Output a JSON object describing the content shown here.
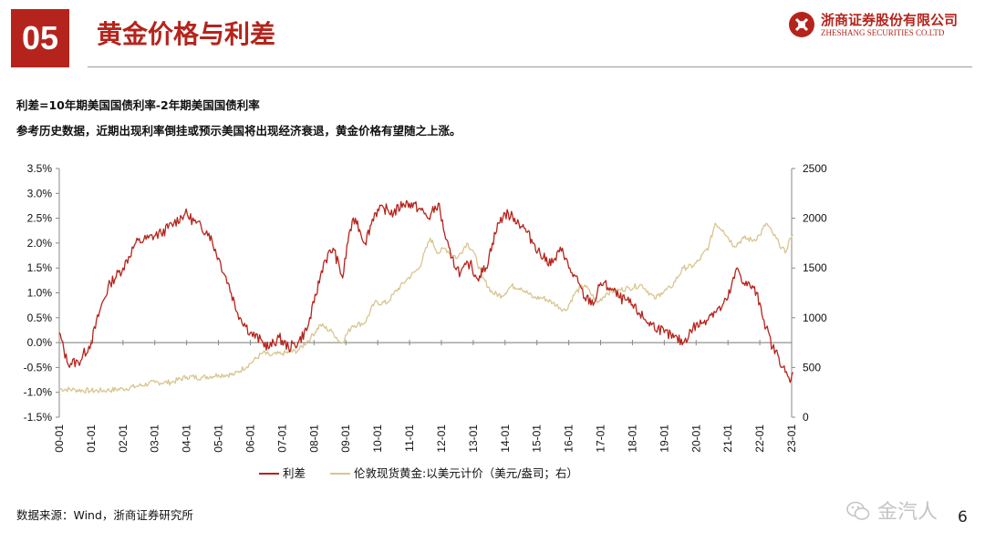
{
  "header": {
    "section_number": "05",
    "title": "黄金价格与利差",
    "logo_cn": "浙商证券股份有限公司",
    "logo_en": "ZHESHANG SECURITIES CO.LTD"
  },
  "subtitle1": "利差=10年期美国国债利率-2年期美国国债利率",
  "subtitle2": "参考历史数据，近期出现利率倒挂或预示美国将出现经济衰退，黄金价格有望随之上涨。",
  "source": "数据来源：Wind，浙商证券研究所",
  "watermark": "金汽人",
  "page_number": "6",
  "colors": {
    "spread": "#b5241c",
    "gold": "#d8c58f",
    "brand": "#b5241c"
  },
  "chart_data": {
    "type": "line",
    "title": "",
    "x_tick_labels": [
      "00-01",
      "01-01",
      "02-01",
      "03-01",
      "04-01",
      "05-01",
      "06-01",
      "07-01",
      "08-01",
      "09-01",
      "10-01",
      "11-01",
      "12-01",
      "13-01",
      "14-01",
      "15-01",
      "16-01",
      "17-01",
      "18-01",
      "19-01",
      "20-01",
      "21-01",
      "22-01",
      "23-01"
    ],
    "left_axis": {
      "ylim": [
        -0.015,
        0.035
      ],
      "tick_labels": [
        "3.5%",
        "3.0%",
        "2.5%",
        "2.0%",
        "1.5%",
        "1.0%",
        "0.5%",
        "0.0%",
        "-0.5%",
        "-1.0%",
        "-1.5%"
      ]
    },
    "right_axis": {
      "ylim": [
        0,
        2500
      ],
      "tick_labels": [
        "2500",
        "2000",
        "1500",
        "1000",
        "500",
        "0"
      ]
    },
    "legend": {
      "position": "bottom-center",
      "entries": [
        "利差",
        "伦敦现货黄金:以美元计价（美元/盎司；右）"
      ]
    },
    "series": [
      {
        "name": "利差",
        "axis": "left",
        "points": [
          [
            2000.0,
            0.002
          ],
          [
            2000.25,
            -0.004
          ],
          [
            2000.6,
            -0.004
          ],
          [
            2001.0,
            0.0
          ],
          [
            2001.3,
            0.007
          ],
          [
            2001.6,
            0.012
          ],
          [
            2002.0,
            0.015
          ],
          [
            2002.4,
            0.02
          ],
          [
            2002.8,
            0.021
          ],
          [
            2003.2,
            0.022
          ],
          [
            2003.6,
            0.024
          ],
          [
            2003.95,
            0.026
          ],
          [
            2004.3,
            0.024
          ],
          [
            2004.7,
            0.022
          ],
          [
            2005.0,
            0.017
          ],
          [
            2005.3,
            0.012
          ],
          [
            2005.6,
            0.006
          ],
          [
            2006.0,
            0.002
          ],
          [
            2006.4,
            0.0
          ],
          [
            2006.6,
            -0.001
          ],
          [
            2006.9,
            0.001
          ],
          [
            2007.2,
            -0.001
          ],
          [
            2007.5,
            0.0
          ],
          [
            2007.8,
            0.003
          ],
          [
            2008.0,
            0.008
          ],
          [
            2008.3,
            0.016
          ],
          [
            2008.6,
            0.019
          ],
          [
            2008.9,
            0.013
          ],
          [
            2009.1,
            0.022
          ],
          [
            2009.3,
            0.025
          ],
          [
            2009.6,
            0.02
          ],
          [
            2009.9,
            0.026
          ],
          [
            2010.2,
            0.027
          ],
          [
            2010.5,
            0.026
          ],
          [
            2010.8,
            0.028
          ],
          [
            2011.0,
            0.028
          ],
          [
            2011.3,
            0.027
          ],
          [
            2011.6,
            0.025
          ],
          [
            2011.9,
            0.028
          ],
          [
            2012.1,
            0.022
          ],
          [
            2012.3,
            0.017
          ],
          [
            2012.6,
            0.014
          ],
          [
            2012.9,
            0.016
          ],
          [
            2013.1,
            0.013
          ],
          [
            2013.4,
            0.015
          ],
          [
            2013.6,
            0.02
          ],
          [
            2013.8,
            0.024
          ],
          [
            2014.0,
            0.026
          ],
          [
            2014.3,
            0.025
          ],
          [
            2014.6,
            0.023
          ],
          [
            2014.9,
            0.02
          ],
          [
            2015.2,
            0.017
          ],
          [
            2015.5,
            0.016
          ],
          [
            2015.8,
            0.019
          ],
          [
            2016.0,
            0.015
          ],
          [
            2016.3,
            0.012
          ],
          [
            2016.5,
            0.009
          ],
          [
            2016.8,
            0.008
          ],
          [
            2017.0,
            0.012
          ],
          [
            2017.3,
            0.011
          ],
          [
            2017.6,
            0.009
          ],
          [
            2017.9,
            0.008
          ],
          [
            2018.2,
            0.006
          ],
          [
            2018.5,
            0.004
          ],
          [
            2018.8,
            0.003
          ],
          [
            2019.0,
            0.002
          ],
          [
            2019.3,
            0.001
          ],
          [
            2019.6,
            0.0
          ],
          [
            2019.9,
            0.003
          ],
          [
            2020.2,
            0.004
          ],
          [
            2020.5,
            0.006
          ],
          [
            2020.8,
            0.007
          ],
          [
            2021.0,
            0.009
          ],
          [
            2021.3,
            0.015
          ],
          [
            2021.5,
            0.012
          ],
          [
            2021.8,
            0.011
          ],
          [
            2022.0,
            0.008
          ],
          [
            2022.2,
            0.003
          ],
          [
            2022.4,
            -0.001
          ],
          [
            2022.6,
            -0.003
          ],
          [
            2022.8,
            -0.006
          ],
          [
            2022.95,
            -0.008
          ],
          [
            2023.05,
            -0.006
          ]
        ]
      },
      {
        "name": "伦敦现货黄金:以美元计价（美元/盎司；右）",
        "axis": "right",
        "points": [
          [
            2000.0,
            285
          ],
          [
            2000.5,
            275
          ],
          [
            2001.0,
            265
          ],
          [
            2001.5,
            270
          ],
          [
            2002.0,
            285
          ],
          [
            2002.5,
            315
          ],
          [
            2003.0,
            350
          ],
          [
            2003.5,
            350
          ],
          [
            2004.0,
            405
          ],
          [
            2004.5,
            400
          ],
          [
            2005.0,
            425
          ],
          [
            2005.5,
            430
          ],
          [
            2006.0,
            540
          ],
          [
            2006.4,
            650
          ],
          [
            2006.6,
            620
          ],
          [
            2007.0,
            640
          ],
          [
            2007.5,
            670
          ],
          [
            2007.9,
            800
          ],
          [
            2008.2,
            930
          ],
          [
            2008.6,
            850
          ],
          [
            2008.85,
            740
          ],
          [
            2009.2,
            920
          ],
          [
            2009.6,
            950
          ],
          [
            2009.9,
            1150
          ],
          [
            2010.3,
            1150
          ],
          [
            2010.5,
            1240
          ],
          [
            2010.9,
            1380
          ],
          [
            2011.3,
            1500
          ],
          [
            2011.65,
            1800
          ],
          [
            2011.9,
            1650
          ],
          [
            2012.1,
            1700
          ],
          [
            2012.5,
            1600
          ],
          [
            2012.8,
            1750
          ],
          [
            2013.0,
            1670
          ],
          [
            2013.3,
            1400
          ],
          [
            2013.6,
            1250
          ],
          [
            2013.9,
            1220
          ],
          [
            2014.2,
            1320
          ],
          [
            2014.5,
            1300
          ],
          [
            2014.9,
            1200
          ],
          [
            2015.2,
            1200
          ],
          [
            2015.5,
            1150
          ],
          [
            2015.9,
            1070
          ],
          [
            2016.2,
            1250
          ],
          [
            2016.5,
            1330
          ],
          [
            2016.9,
            1150
          ],
          [
            2017.2,
            1250
          ],
          [
            2017.6,
            1280
          ],
          [
            2017.9,
            1300
          ],
          [
            2018.3,
            1330
          ],
          [
            2018.7,
            1190
          ],
          [
            2018.9,
            1250
          ],
          [
            2019.2,
            1300
          ],
          [
            2019.6,
            1500
          ],
          [
            2019.9,
            1520
          ],
          [
            2020.1,
            1580
          ],
          [
            2020.4,
            1720
          ],
          [
            2020.6,
            1950
          ],
          [
            2020.85,
            1880
          ],
          [
            2021.2,
            1720
          ],
          [
            2021.5,
            1800
          ],
          [
            2021.8,
            1780
          ],
          [
            2022.0,
            1830
          ],
          [
            2022.2,
            1950
          ],
          [
            2022.4,
            1850
          ],
          [
            2022.6,
            1750
          ],
          [
            2022.8,
            1650
          ],
          [
            2022.95,
            1800
          ],
          [
            2023.05,
            1830
          ]
        ]
      }
    ]
  }
}
